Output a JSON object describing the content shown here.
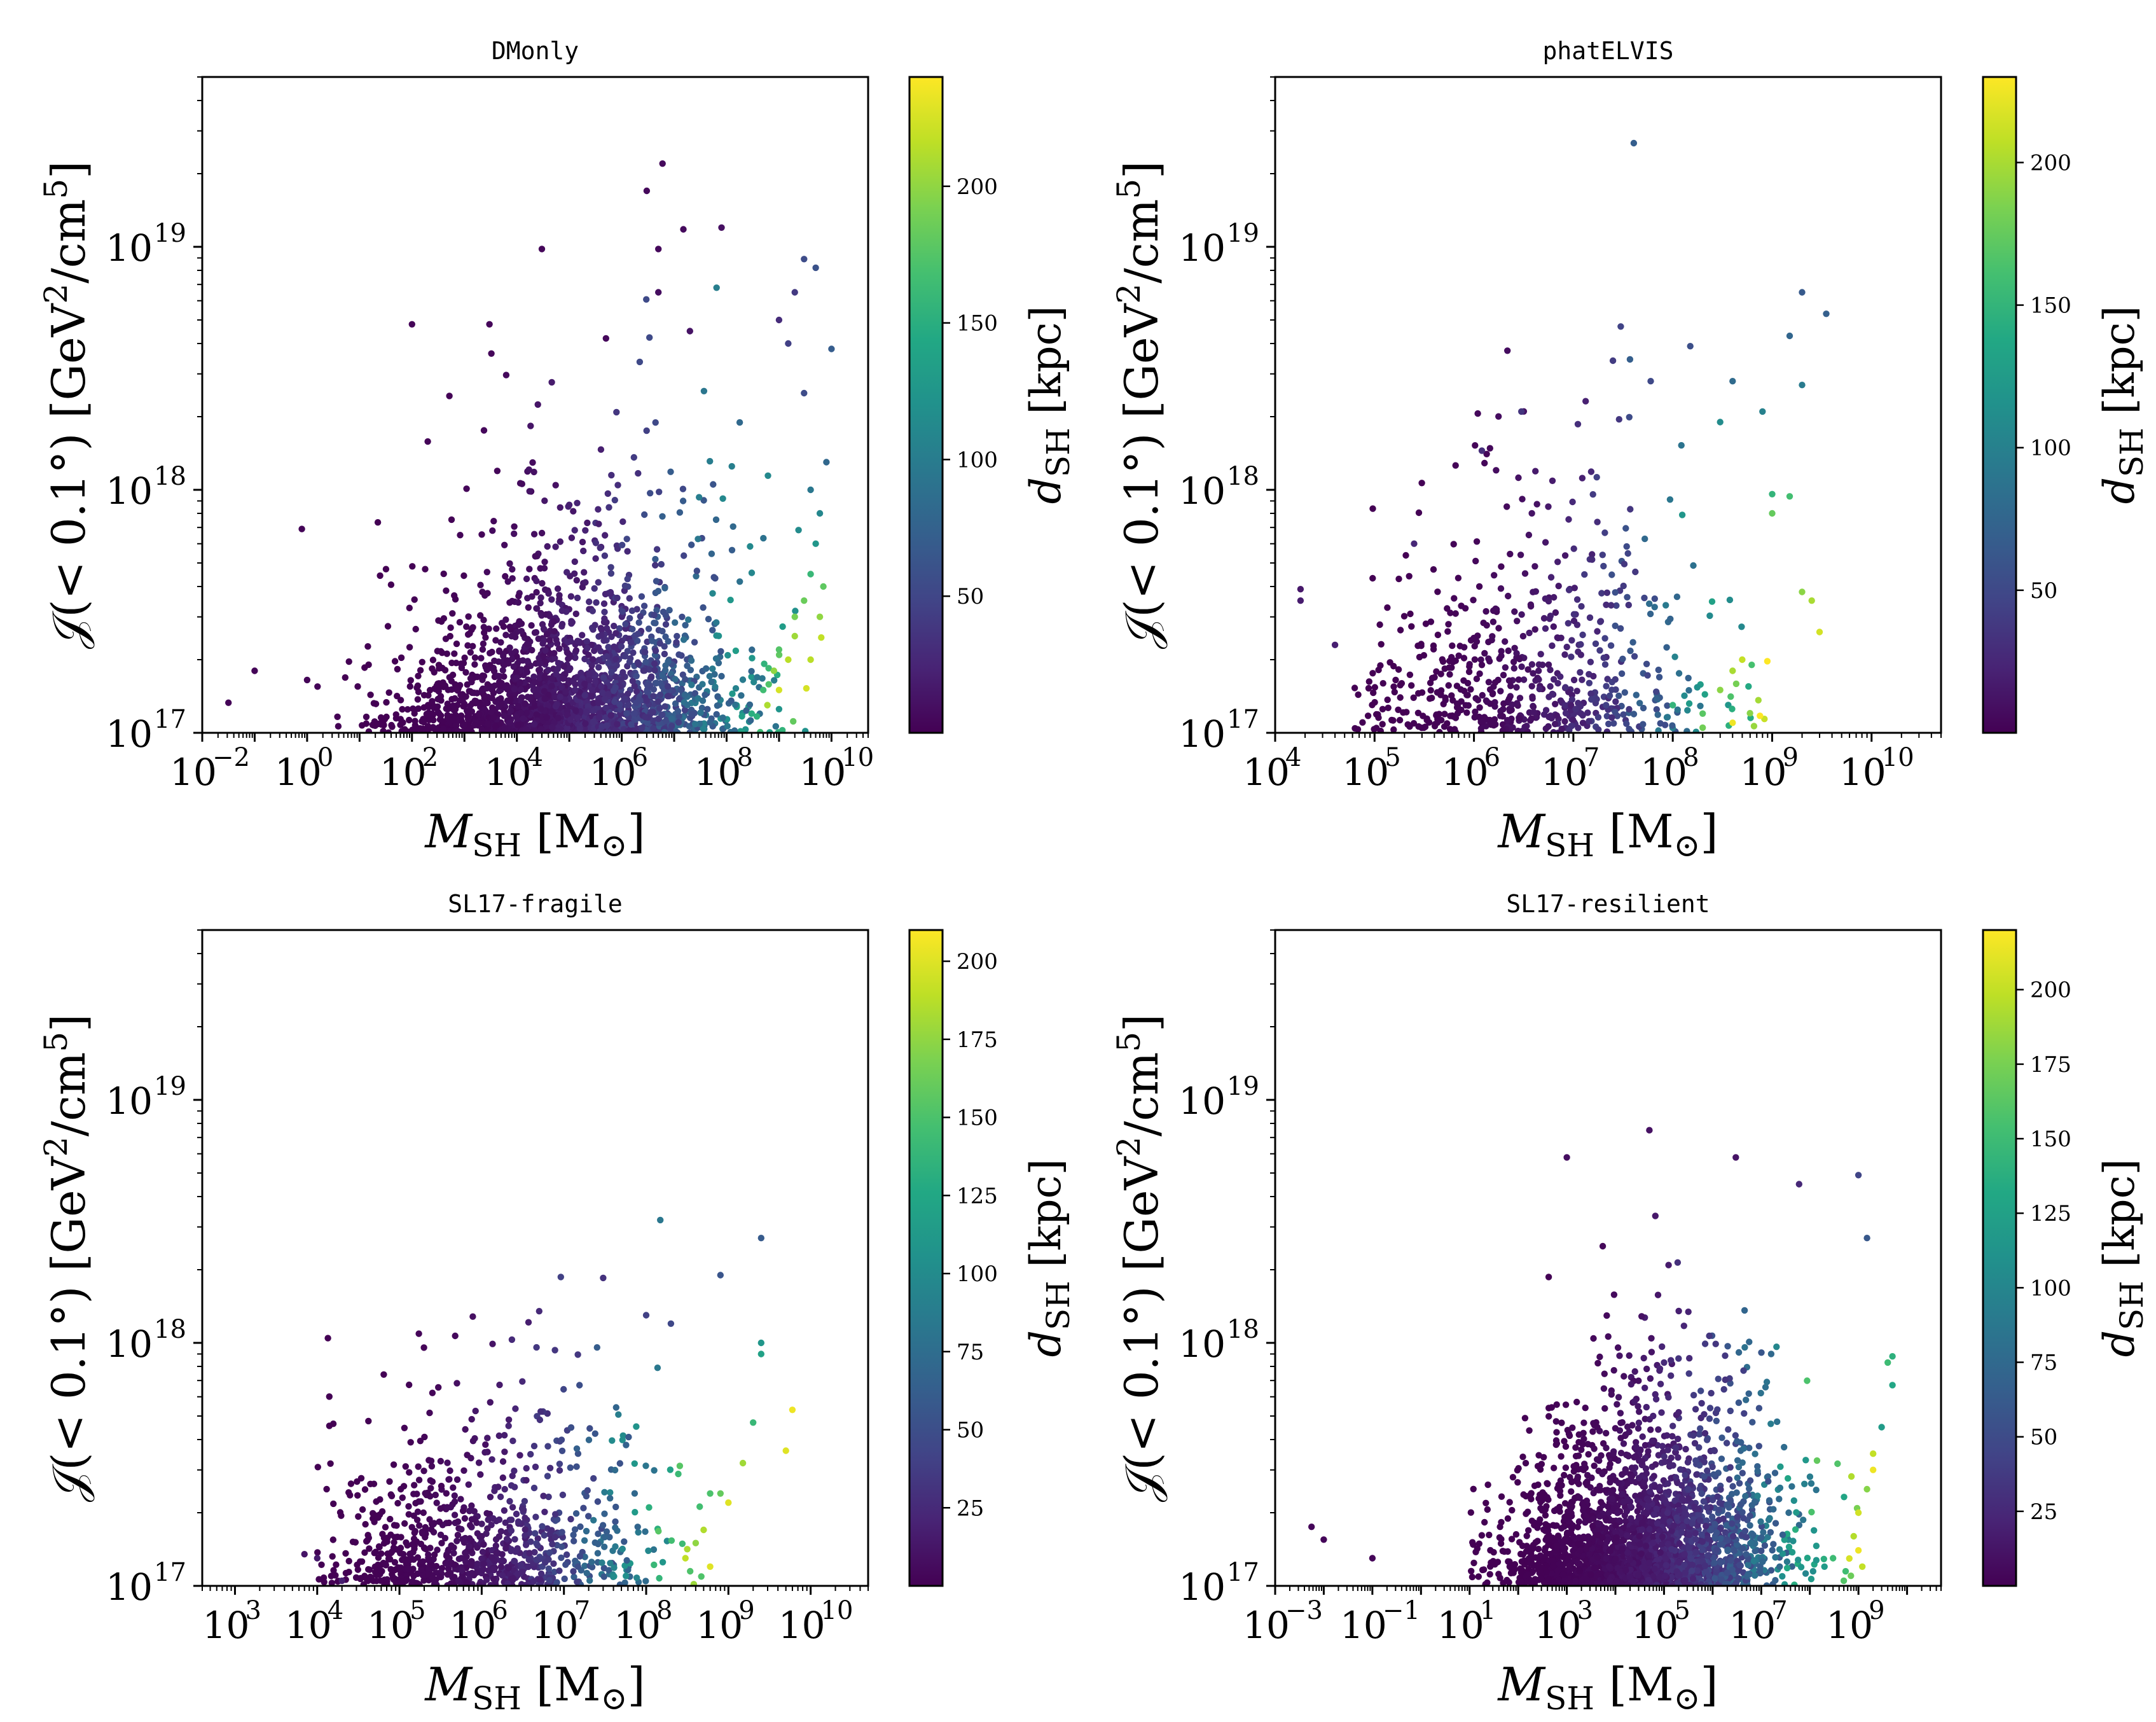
{
  "chart_data": [
    {
      "type": "scatter",
      "title": "DMonly",
      "xlabel": "M_SH [M_⊙]",
      "xlabel_main": "M",
      "xlabel_sub": "SH",
      "xlabel_unit": " [M",
      "xlabel_unit_sub": "⊙",
      "xlabel_close": "]",
      "ylabel": "𝒥(< 0.1°) [GeV²/cm⁵]",
      "ylabel_text": "𝒥(< 0.1°) [GeV",
      "ylabel_sup1": "2",
      "ylabel_mid": "/cm",
      "ylabel_sup2": "5",
      "ylabel_close": "]",
      "xscale": "log",
      "yscale": "log",
      "xlim": [
        0.01,
        50000000000.0
      ],
      "ylim": [
        1e+17,
        5e+19
      ],
      "xticks": [
        {
          "base": "10",
          "exp": "−2",
          "v": 0.01
        },
        {
          "base": "10",
          "exp": "0",
          "v": 1
        },
        {
          "base": "10",
          "exp": "2",
          "v": 100
        },
        {
          "base": "10",
          "exp": "4",
          "v": 10000.0
        },
        {
          "base": "10",
          "exp": "6",
          "v": 1000000.0
        },
        {
          "base": "10",
          "exp": "8",
          "v": 100000000.0
        },
        {
          "base": "10",
          "exp": "10",
          "v": 10000000000.0
        }
      ],
      "yticks": [
        {
          "base": "10",
          "exp": "17",
          "v": 1e+17
        },
        {
          "base": "10",
          "exp": "18",
          "v": 1e+18
        },
        {
          "base": "10",
          "exp": "19",
          "v": 1e+19
        }
      ],
      "colorbar": {
        "label": "d_SH [kpc]",
        "label_main": "d",
        "label_sub": "SH",
        "label_unit": " [kpc]",
        "min": 0,
        "max": 240,
        "ticks": [
          {
            "label": "50",
            "v": 50
          },
          {
            "label": "100",
            "v": 100
          },
          {
            "label": "150",
            "v": 150
          },
          {
            "label": "200",
            "v": 200
          }
        ],
        "colormap": "viridis"
      },
      "points": [
        [
          0.0316,
          1.33e+17,
          2
        ],
        [
          0.1,
          1.8e+17,
          2
        ],
        [
          0.794,
          6.9e+17,
          2
        ],
        [
          1.0,
          1.65e+17,
          2
        ],
        [
          1.58,
          1.55e+17,
          2
        ],
        [
          100,
          4.8e+18,
          3
        ],
        [
          200,
          1.58e+18,
          3
        ],
        [
          30000.0,
          9.8e+18,
          4
        ],
        [
          3000000.0,
          1.7e+19,
          5
        ],
        [
          6000000.0,
          2.2e+19,
          6
        ],
        [
          5000000.0,
          9.8e+18,
          5
        ],
        [
          15000000.0,
          1.18e+19,
          6
        ],
        [
          80000000.0,
          1.2e+19,
          10
        ],
        [
          3000000000.0,
          8.9e+18,
          55
        ],
        [
          5000000000.0,
          8.2e+18,
          60
        ],
        [
          10000000000.0,
          3.8e+18,
          70
        ],
        [
          2000000000.0,
          6.5e+18,
          40
        ],
        [
          1500000000.0,
          4e+18,
          45
        ],
        [
          3000.0,
          4.8e+18,
          4
        ],
        [
          500000.0,
          4.2e+18,
          5
        ],
        [
          5000000.0,
          6.5e+18,
          8
        ],
        [
          20000000.0,
          4.5e+18,
          12
        ],
        [
          1000000000.0,
          5e+18,
          30
        ],
        [
          3000000000.0,
          2.5e+18,
          55
        ],
        [
          8000000000.0,
          1.3e+18,
          80
        ],
        [
          4000000000.0,
          1e+18,
          95
        ],
        [
          6000000000.0,
          8e+17,
          110
        ],
        [
          5000000000.0,
          6e+17,
          125
        ],
        [
          4000000000.0,
          4.5e+17,
          160
        ],
        [
          3000000000.0,
          3.5e+17,
          185
        ],
        [
          2000000000.0,
          2.5e+17,
          205
        ],
        [
          1500000000.0,
          2e+17,
          215
        ],
        [
          1000000000.0,
          1.5e+17,
          225
        ],
        [
          600000000.0,
          1.3e+17,
          210
        ],
        [
          800000000.0,
          1.8e+17,
          200
        ],
        [
          2000000000.0,
          3e+17,
          190
        ],
        [
          1000000000.0,
          2.2e+17,
          175
        ],
        [
          500000000.0,
          1.5e+17,
          165
        ],
        [
          300000000.0,
          1.2e+17,
          150
        ],
        [
          200000000.0,
          1e+17,
          140
        ],
        [
          6000000000.0,
          3e+17,
          200
        ],
        [
          4000000000.0,
          2e+17,
          215
        ],
        [
          7000000000.0,
          4e+17,
          180
        ]
      ],
      "density": {
        "seed": 11,
        "n": 2200,
        "xmin": 0.5,
        "xmax": 10.0,
        "xmode": 5.0,
        "xsig": 1.6,
        "yfloor": 17.0,
        "ydecay": 0.22,
        "dscale": 240
      }
    },
    {
      "type": "scatter",
      "title": "phatELVIS",
      "xlabel": "M_SH [M_⊙]",
      "xlabel_main": "M",
      "xlabel_sub": "SH",
      "xlabel_unit": " [M",
      "xlabel_unit_sub": "⊙",
      "xlabel_close": "]",
      "ylabel": "𝒥(< 0.1°) [GeV²/cm⁵]",
      "ylabel_text": "𝒥(< 0.1°) [GeV",
      "ylabel_sup1": "2",
      "ylabel_mid": "/cm",
      "ylabel_sup2": "5",
      "ylabel_close": "]",
      "xscale": "log",
      "yscale": "log",
      "xlim": [
        10000.0,
        50000000000.0
      ],
      "ylim": [
        1e+17,
        5e+19
      ],
      "xticks": [
        {
          "base": "10",
          "exp": "4",
          "v": 10000.0
        },
        {
          "base": "10",
          "exp": "5",
          "v": 100000.0
        },
        {
          "base": "10",
          "exp": "6",
          "v": 1000000.0
        },
        {
          "base": "10",
          "exp": "7",
          "v": 10000000.0
        },
        {
          "base": "10",
          "exp": "8",
          "v": 100000000.0
        },
        {
          "base": "10",
          "exp": "9",
          "v": 1000000000.0
        },
        {
          "base": "10",
          "exp": "10",
          "v": 10000000000.0
        }
      ],
      "yticks": [
        {
          "base": "10",
          "exp": "17",
          "v": 1e+17
        },
        {
          "base": "10",
          "exp": "18",
          "v": 1e+18
        },
        {
          "base": "10",
          "exp": "19",
          "v": 1e+19
        }
      ],
      "colorbar": {
        "label": "d_SH [kpc]",
        "label_main": "d",
        "label_sub": "SH",
        "label_unit": " [kpc]",
        "min": 0,
        "max": 230,
        "ticks": [
          {
            "label": "50",
            "v": 50
          },
          {
            "label": "100",
            "v": 100
          },
          {
            "label": "150",
            "v": 150
          },
          {
            "label": "200",
            "v": 200
          }
        ],
        "colormap": "viridis"
      },
      "points": [
        [
          18000.0,
          3.9e+17,
          15
        ],
        [
          18000.0,
          3.5e+17,
          18
        ],
        [
          40000.0,
          2.3e+17,
          20
        ],
        [
          250000.0,
          6e+17,
          25
        ],
        [
          1200000.0,
          1.45e+18,
          30
        ],
        [
          3000000.0,
          2.1e+18,
          35
        ],
        [
          30000000.0,
          4.7e+18,
          45
        ],
        [
          25000000.0,
          3.4e+18,
          40
        ],
        [
          60000000.0,
          2.8e+18,
          50
        ],
        [
          150000000.0,
          3.9e+18,
          55
        ],
        [
          2000000000.0,
          6.5e+18,
          65
        ],
        [
          3500000000.0,
          5.3e+18,
          70
        ],
        [
          1500000000.0,
          4.3e+18,
          75
        ],
        [
          400000000.0,
          2.8e+18,
          80
        ],
        [
          2000000000.0,
          2.7e+18,
          95
        ],
        [
          800000000.0,
          2.1e+18,
          100
        ],
        [
          300000000.0,
          1.9e+18,
          110
        ],
        [
          1000000000.0,
          9.6e+17,
          150
        ],
        [
          1000000000.0,
          8e+17,
          175
        ],
        [
          1500000000.0,
          9.4e+17,
          160
        ],
        [
          2000000000.0,
          3.8e+17,
          190
        ],
        [
          2500000000.0,
          3.5e+17,
          200
        ],
        [
          3000000000.0,
          2.6e+17,
          215
        ],
        [
          500000000.0,
          2e+17,
          210
        ],
        [
          400000000.0,
          1.8e+17,
          200
        ],
        [
          300000000.0,
          1.5e+17,
          190
        ],
        [
          200000000.0,
          1.2e+17,
          170
        ],
        [
          400000000.0,
          1.1e+17,
          225
        ],
        [
          200000000.0,
          1.05e+17,
          180
        ],
        [
          100000000.0,
          1.3e+17,
          150
        ]
      ],
      "density": {
        "seed": 23,
        "n": 650,
        "xmin": 4.8,
        "xmax": 9.0,
        "xmode": 6.5,
        "xsig": 1.0,
        "yfloor": 17.0,
        "ydecay": 0.28,
        "dscale": 230
      }
    },
    {
      "type": "scatter",
      "title": "SL17-fragile",
      "xlabel": "M_SH [M_⊙]",
      "xlabel_main": "M",
      "xlabel_sub": "SH",
      "xlabel_unit": " [M",
      "xlabel_unit_sub": "⊙",
      "xlabel_close": "]",
      "ylabel": "𝒥(< 0.1°) [GeV²/cm⁵]",
      "ylabel_text": "𝒥(< 0.1°) [GeV",
      "ylabel_sup1": "2",
      "ylabel_mid": "/cm",
      "ylabel_sup2": "5",
      "ylabel_close": "]",
      "xscale": "log",
      "yscale": "log",
      "xlim": [
        400,
        50000000000.0
      ],
      "ylim": [
        1e+17,
        5e+19
      ],
      "xticks": [
        {
          "base": "10",
          "exp": "3",
          "v": 1000.0
        },
        {
          "base": "10",
          "exp": "4",
          "v": 10000.0
        },
        {
          "base": "10",
          "exp": "5",
          "v": 100000.0
        },
        {
          "base": "10",
          "exp": "6",
          "v": 1000000.0
        },
        {
          "base": "10",
          "exp": "7",
          "v": 10000000.0
        },
        {
          "base": "10",
          "exp": "8",
          "v": 100000000.0
        },
        {
          "base": "10",
          "exp": "9",
          "v": 1000000000.0
        },
        {
          "base": "10",
          "exp": "10",
          "v": 10000000000.0
        }
      ],
      "yticks": [
        {
          "base": "10",
          "exp": "17",
          "v": 1e+17
        },
        {
          "base": "10",
          "exp": "18",
          "v": 1e+18
        },
        {
          "base": "10",
          "exp": "19",
          "v": 1e+19
        }
      ],
      "colorbar": {
        "label": "d_SH [kpc]",
        "label_main": "d",
        "label_sub": "SH",
        "label_unit": " [kpc]",
        "min": 0,
        "max": 210,
        "ticks": [
          {
            "label": "25",
            "v": 25
          },
          {
            "label": "50",
            "v": 50
          },
          {
            "label": "75",
            "v": 75
          },
          {
            "label": "100",
            "v": 100
          },
          {
            "label": "125",
            "v": 125
          },
          {
            "label": "150",
            "v": 150
          },
          {
            "label": "175",
            "v": 175
          },
          {
            "label": "200",
            "v": 200
          }
        ],
        "colormap": "viridis"
      },
      "points": [
        [
          2500000000.0,
          2.7e+18,
          60
        ],
        [
          800000000.0,
          1.9e+18,
          55
        ],
        [
          30000000.0,
          1.85e+18,
          30
        ],
        [
          5000000.0,
          1.35e+18,
          25
        ],
        [
          100000000.0,
          1.3e+18,
          40
        ],
        [
          200000000.0,
          1.2e+18,
          45
        ],
        [
          2500000000.0,
          1e+18,
          110
        ],
        [
          2500000000.0,
          9e+17,
          120
        ],
        [
          2000000000.0,
          4.7e+17,
          140
        ],
        [
          5000000000.0,
          3.6e+17,
          200
        ],
        [
          6000000000.0,
          5.3e+17,
          205
        ],
        [
          1500000000.0,
          3.2e+17,
          180
        ],
        [
          1000000000.0,
          2.2e+17,
          200
        ],
        [
          800000000.0,
          2.4e+17,
          160
        ],
        [
          600000000.0,
          2.4e+17,
          150
        ],
        [
          500000000.0,
          1.7e+17,
          185
        ],
        [
          400000000.0,
          1.5e+17,
          175
        ],
        [
          300000000.0,
          1.3e+17,
          190
        ],
        [
          600000000.0,
          1.2e+17,
          200
        ],
        [
          10000.0,
          1.3e+17,
          15
        ],
        [
          7000.0,
          1.35e+17,
          12
        ],
        [
          20000.0,
          1.05e+17,
          18
        ]
      ],
      "density": {
        "seed": 37,
        "n": 900,
        "xmin": 4.0,
        "xmax": 8.7,
        "xmode": 6.0,
        "xsig": 1.0,
        "yfloor": 17.0,
        "ydecay": 0.22,
        "dscale": 210
      }
    },
    {
      "type": "scatter",
      "title": "SL17-resilient",
      "xlabel": "M_SH [M_⊙]",
      "xlabel_main": "M",
      "xlabel_sub": "SH",
      "xlabel_unit": " [M",
      "xlabel_unit_sub": "⊙",
      "xlabel_close": "]",
      "ylabel": "𝒥(< 0.1°) [GeV²/cm⁵]",
      "ylabel_text": "𝒥(< 0.1°) [GeV",
      "ylabel_sup1": "2",
      "ylabel_mid": "/cm",
      "ylabel_sup2": "5",
      "ylabel_close": "]",
      "xscale": "log",
      "yscale": "log",
      "xlim": [
        0.001,
        50000000000.0
      ],
      "ylim": [
        1e+17,
        5e+19
      ],
      "xticks": [
        {
          "base": "10",
          "exp": "−3",
          "v": 0.001
        },
        {
          "base": "10",
          "exp": "−1",
          "v": 0.1
        },
        {
          "base": "10",
          "exp": "1",
          "v": 10
        },
        {
          "base": "10",
          "exp": "3",
          "v": 1000.0
        },
        {
          "base": "10",
          "exp": "5",
          "v": 100000.0
        },
        {
          "base": "10",
          "exp": "7",
          "v": 10000000.0
        },
        {
          "base": "10",
          "exp": "9",
          "v": 1000000000.0
        }
      ],
      "yticks": [
        {
          "base": "10",
          "exp": "17",
          "v": 1e+17
        },
        {
          "base": "10",
          "exp": "18",
          "v": 1e+18
        },
        {
          "base": "10",
          "exp": "19",
          "v": 1e+19
        }
      ],
      "colorbar": {
        "label": "d_SH [kpc]",
        "label_main": "d",
        "label_sub": "SH",
        "label_unit": " [kpc]",
        "min": 0,
        "max": 220,
        "ticks": [
          {
            "label": "25",
            "v": 25
          },
          {
            "label": "50",
            "v": 50
          },
          {
            "label": "75",
            "v": 75
          },
          {
            "label": "100",
            "v": 100
          },
          {
            "label": "125",
            "v": 125
          },
          {
            "label": "150",
            "v": 150
          },
          {
            "label": "175",
            "v": 175
          },
          {
            "label": "200",
            "v": 200
          }
        ],
        "colormap": "viridis"
      },
      "points": [
        [
          0.0056,
          1.75e+17,
          3
        ],
        [
          0.01,
          1.55e+17,
          3
        ],
        [
          0.1,
          1.3e+17,
          3
        ],
        [
          1000.0,
          5.8e+18,
          8
        ],
        [
          50000.0,
          7.5e+18,
          10
        ],
        [
          3000000.0,
          5.8e+18,
          12
        ],
        [
          60000000.0,
          4.5e+18,
          25
        ],
        [
          1000000000.0,
          4.9e+18,
          45
        ],
        [
          1500000000.0,
          2.7e+18,
          60
        ],
        [
          5000000000.0,
          8.8e+17,
          140
        ],
        [
          4000000000.0,
          8.3e+17,
          150
        ],
        [
          5000000000.0,
          6.7e+17,
          130
        ],
        [
          3000000000.0,
          4.5e+17,
          120
        ],
        [
          2000000000.0,
          3.5e+17,
          200
        ],
        [
          2000000000.0,
          3e+17,
          215
        ],
        [
          1500000000.0,
          2.5e+17,
          180
        ],
        [
          1000000000.0,
          2e+17,
          205
        ],
        [
          800000000.0,
          1.6e+17,
          195
        ],
        [
          1200000000.0,
          1.2e+17,
          200
        ],
        [
          700000000.0,
          1.1e+17,
          170
        ],
        [
          300000000.0,
          1.3e+17,
          150
        ],
        [
          500000000.0,
          1.05e+17,
          160
        ],
        [
          200000000.0,
          1.2e+17,
          120
        ],
        [
          1000000000.0,
          1.4e+17,
          215
        ]
      ],
      "density": {
        "seed": 53,
        "n": 2600,
        "xmin": 1.0,
        "xmax": 9.0,
        "xmode": 4.6,
        "xsig": 1.4,
        "yfloor": 17.0,
        "ydecay": 0.23,
        "dscale": 220
      }
    }
  ]
}
